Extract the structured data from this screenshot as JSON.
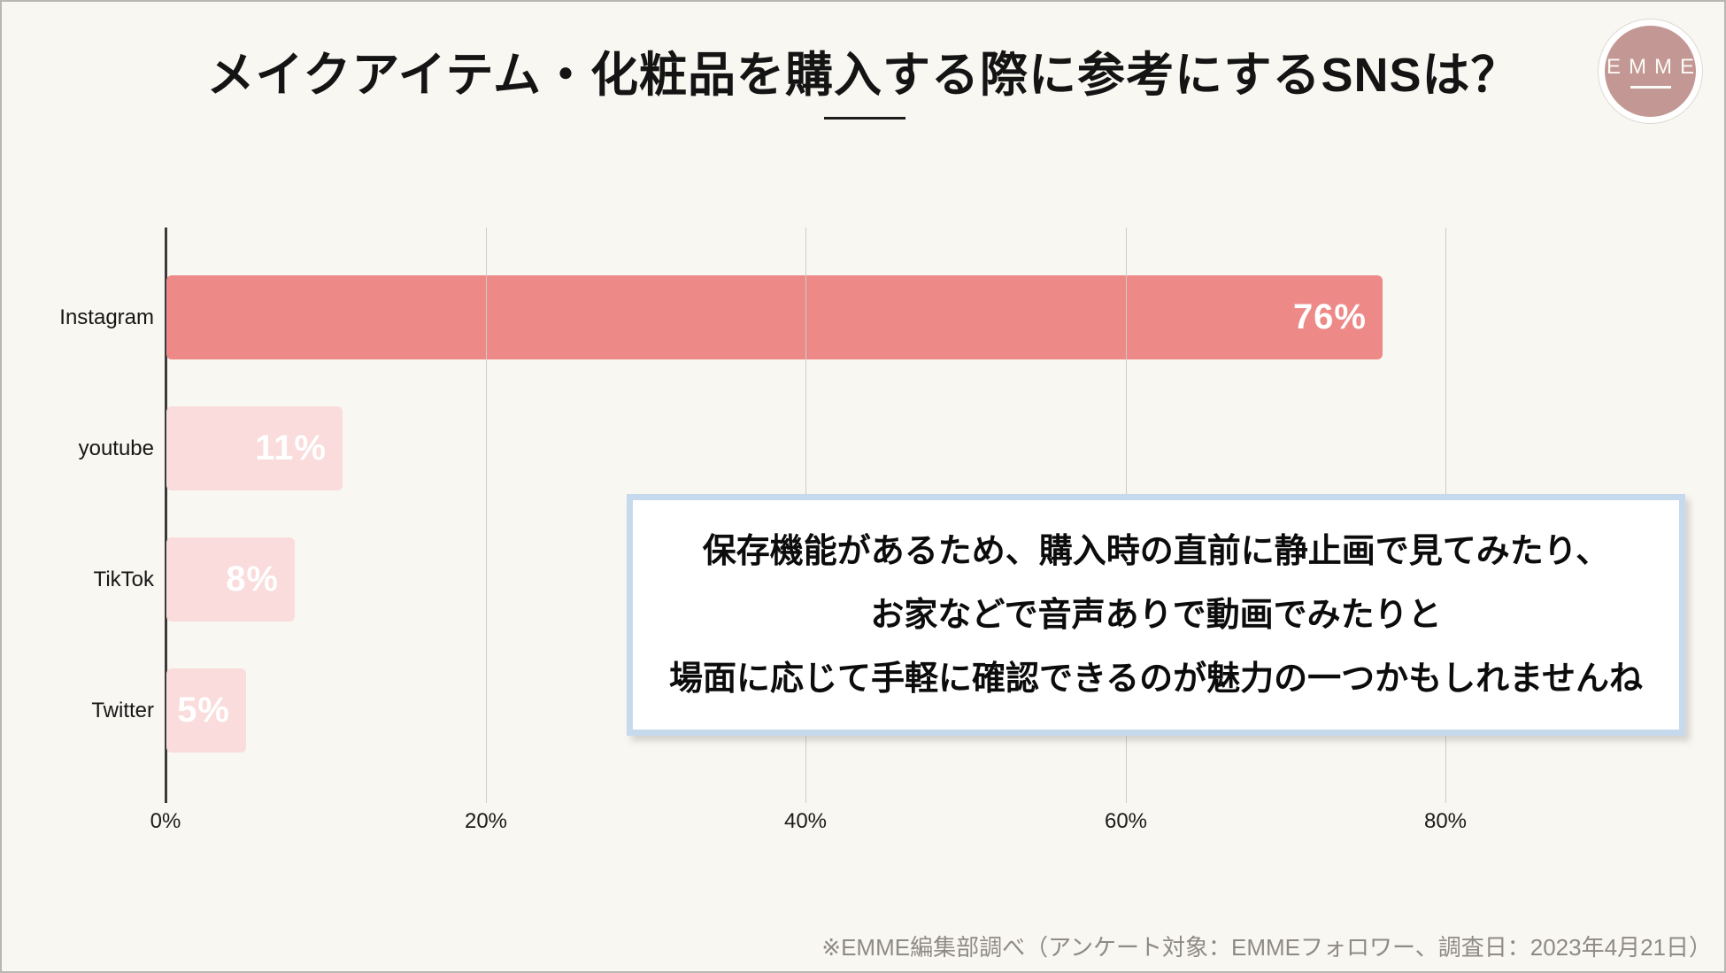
{
  "title": "メイクアイテム・化粧品を購入する際に参考にするSNSは？",
  "logo": {
    "label": "EMME"
  },
  "chart_data": {
    "type": "bar",
    "orientation": "horizontal",
    "title": "メイクアイテム・化粧品を購入する際に参考にするSNSは？",
    "categories": [
      "Instagram",
      "youtube",
      "TikTok",
      "Twitter"
    ],
    "values": [
      76,
      11,
      8,
      5
    ],
    "value_labels": [
      "76%",
      "11%",
      "8%",
      "5%"
    ],
    "x_tick_labels": [
      "0%",
      "20%",
      "40%",
      "60%",
      "80%"
    ],
    "x_tick_values": [
      0,
      20,
      40,
      60,
      80
    ],
    "xlabel": "",
    "ylabel": "",
    "xlim": [
      0,
      95
    ],
    "grid": true,
    "legend": false,
    "highlight_index": 0
  },
  "callout": {
    "lines": [
      "保存機能があるため、購入時の直前に静止画で見てみたり、",
      "お家などで音声ありで動画でみたりと",
      "場面に応じて手軽に確認できるのが魅力の一つかもしれませんね"
    ]
  },
  "footer": {
    "note": "※EMME編集部調べ（アンケート対象：EMMEフォロワー、調査日：2023年4月21日）"
  },
  "colors": {
    "background": "#f9f7f1",
    "bar_highlight": "#ed8a88",
    "bar_default": "#f9dcdb",
    "bar_value_text": "#ffffff",
    "logo_circle": "#c39894",
    "callout_border": "#c7daed",
    "gridline": "#ccccc9",
    "axis": "#3a3a3a",
    "footer_text": "#8d8b83"
  }
}
